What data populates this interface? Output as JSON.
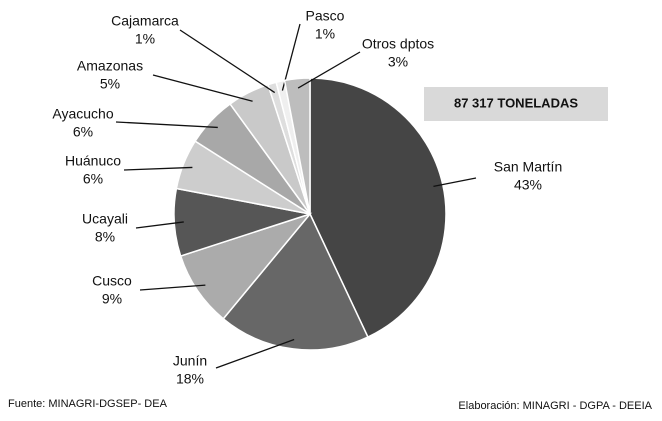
{
  "chart_data": {
    "type": "pie",
    "categories": [
      "San Martín",
      "Junín",
      "Cusco",
      "Ucayali",
      "Huánuco",
      "Ayacucho",
      "Amazonas",
      "Cajamarca",
      "Pasco",
      "Otros dptos"
    ],
    "values": [
      43,
      18,
      9,
      8,
      6,
      6,
      5,
      1,
      1,
      3
    ],
    "value_labels": [
      "43%",
      "18%",
      "9%",
      "8%",
      "6%",
      "6%",
      "5%",
      "1%",
      "1%",
      "3%"
    ],
    "colors": [
      "#454545",
      "#676767",
      "#ababab",
      "#565656",
      "#cdcdcd",
      "#a8a8a8",
      "#c9c9c9",
      "#dedede",
      "#efefef",
      "#bdbdbd"
    ],
    "annotation": "87 317 TONELADAS",
    "source": "Fuente: MINAGRI-DGSEP- DEA",
    "credit": "Elaboración: MINAGRI - DGPA - DEEIA"
  }
}
